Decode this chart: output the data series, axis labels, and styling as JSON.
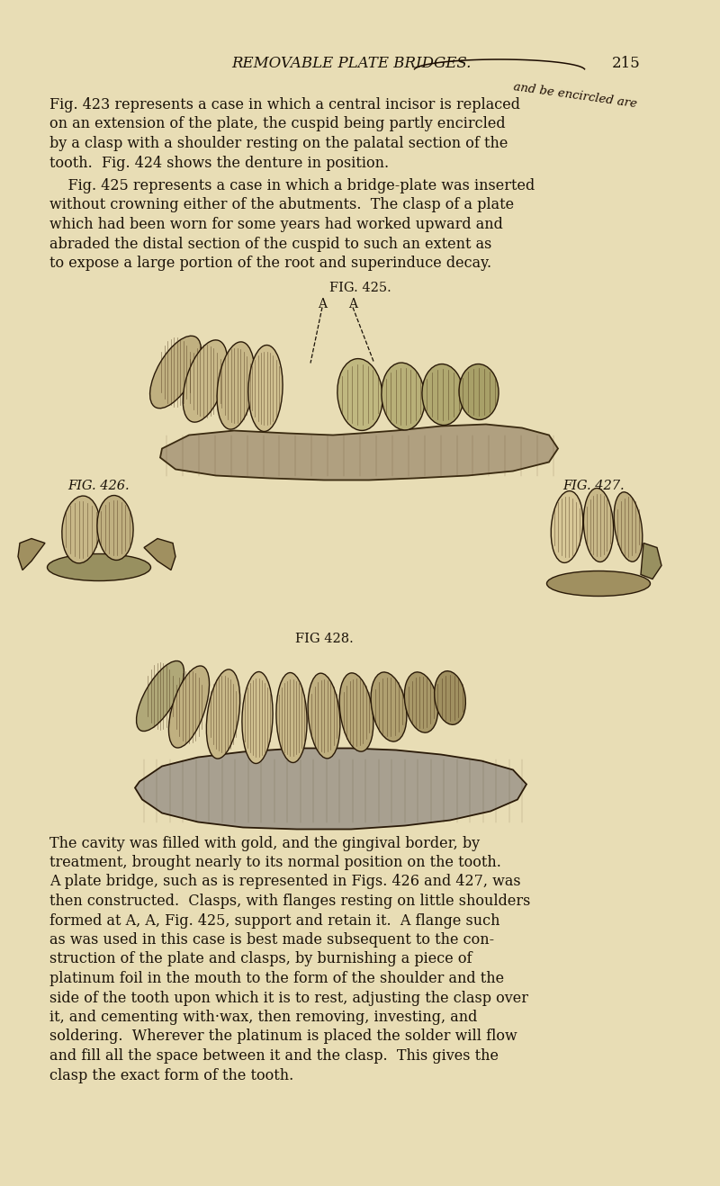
{
  "bg_color": "#e8ddb5",
  "text_color": "#1a1208",
  "header_text": "REMOVABLE PLATE BRIDGES.",
  "page_number": "215",
  "handwritten": "and be encircled are",
  "fig425_label": "FIG. 425.",
  "fig425_A1": "A",
  "fig425_A2": "A",
  "fig426_label": "FIG. 426.",
  "fig427_label": "FIG. 427.",
  "fig428_label": "FIG 428.",
  "p1_lines": [
    "Fig. 423 represents a case in which a central incisor is replaced",
    "on an extension of the plate, the cuspid being partly encircled",
    "by a clasp with a shoulder resting on the palatal section of the",
    "tooth.  Fig. 424 shows the denture in position."
  ],
  "p2_lines": [
    "    Fig. 425 represents a case in which a bridge-plate was inserted",
    "without crowning either of the abutments.  The clasp of a plate",
    "which had been worn for some years had worked upward and",
    "abraded the distal section of the cuspid to such an extent as",
    "to expose a large portion of the root and superinduce decay."
  ],
  "p3_lines": [
    "The cavity was filled with gold, and the gingival border, by",
    "treatment, brought nearly to its normal position on the tooth.",
    "A plate bridge, such as is represented in Figs. 426 and 427, was",
    "then constructed.  Clasps, with flanges resting on little shoulders",
    "formed at A, A, Fig. 425, support and retain it.  A flange such",
    "as was used in this case is best made subsequent to the con-",
    "struction of the plate and clasps, by burnishing a piece of",
    "platinum foil in the mouth to the form of the shoulder and the",
    "side of the tooth upon which it is to rest, adjusting the clasp over",
    "it, and cementing with·wax, then removing, investing, and",
    "soldering.  Wherever the platinum is placed the solder will flow",
    "and fill all the space between it and the clasp.  This gives the",
    "clasp the exact form of the tooth."
  ],
  "figsize": [
    8.0,
    13.18
  ],
  "dpi": 100
}
